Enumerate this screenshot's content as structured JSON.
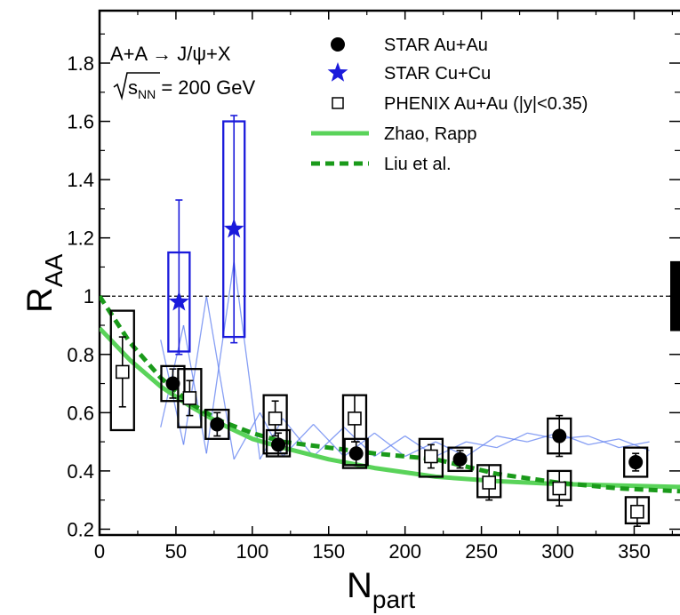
{
  "chart_data": {
    "type": "scatter",
    "xlabel": "N",
    "xlabel_sub": "part",
    "ylabel": "R",
    "ylabel_sub": "AA",
    "xlim": [
      0,
      380
    ],
    "ylim": [
      0.18,
      1.98
    ],
    "xticks": [
      0,
      50,
      100,
      150,
      200,
      250,
      300,
      350
    ],
    "xtick_labels": [
      "0",
      "50",
      "100",
      "150",
      "200",
      "250",
      "300",
      "350"
    ],
    "yticks": [
      0.2,
      0.4,
      0.6,
      0.8,
      1.0,
      1.2,
      1.4,
      1.6,
      1.8
    ],
    "ytick_labels": [
      "0.2",
      "0.4",
      "0.6",
      "0.8",
      "1",
      "1.2",
      "1.4",
      "1.6",
      "1.8"
    ],
    "reference_line_y": 1.0,
    "grid": false,
    "legend_position": "top-right",
    "annotations": {
      "process": "A+A → J/ψ+X",
      "energy_sqrt": "s",
      "energy_sub": "NN",
      "energy_value": " = 200 GeV"
    },
    "series": [
      {
        "name": "STAR Au+Au",
        "marker": "filled-circle",
        "color": "#000000",
        "points": [
          {
            "x": 48,
            "y": 0.7,
            "yerr": 0.05,
            "sys_lo": 0.64,
            "sys_hi": 0.76
          },
          {
            "x": 77,
            "y": 0.56,
            "yerr": 0.04,
            "sys_lo": 0.51,
            "sys_hi": 0.61
          },
          {
            "x": 117,
            "y": 0.49,
            "yerr": 0.04,
            "sys_lo": 0.45,
            "sys_hi": 0.54
          },
          {
            "x": 168,
            "y": 0.46,
            "yerr": 0.04,
            "sys_lo": 0.42,
            "sys_hi": 0.51
          },
          {
            "x": 236,
            "y": 0.44,
            "yerr": 0.03,
            "sys_lo": 0.4,
            "sys_hi": 0.48
          },
          {
            "x": 301,
            "y": 0.52,
            "yerr": 0.07,
            "sys_lo": 0.46,
            "sys_hi": 0.58
          },
          {
            "x": 351,
            "y": 0.43,
            "yerr": 0.03,
            "sys_lo": 0.38,
            "sys_hi": 0.48
          }
        ]
      },
      {
        "name": "STAR Cu+Cu",
        "marker": "star",
        "color": "#1a1adb",
        "points": [
          {
            "x": 52,
            "y": 0.98,
            "yerr_hi": 0.35,
            "yerr_lo": 0.18,
            "sys_lo": 0.81,
            "sys_hi": 1.15
          },
          {
            "x": 88,
            "y": 1.23,
            "yerr_hi": 0.39,
            "yerr_lo": 0.39,
            "sys_lo": 0.86,
            "sys_hi": 1.6
          }
        ]
      },
      {
        "name": "PHENIX Au+Au (|y|<0.35)",
        "marker": "open-square",
        "color": "#000000",
        "points": [
          {
            "x": 15,
            "y": 0.74,
            "yerr": 0.12,
            "sys_lo": 0.54,
            "sys_hi": 0.95
          },
          {
            "x": 59,
            "y": 0.65,
            "yerr": 0.06,
            "sys_lo": 0.55,
            "sys_hi": 0.75
          },
          {
            "x": 115,
            "y": 0.58,
            "yerr": 0.06,
            "sys_lo": 0.46,
            "sys_hi": 0.66
          },
          {
            "x": 167,
            "y": 0.58,
            "yerr": 0.08,
            "sys_lo": 0.41,
            "sys_hi": 0.66
          },
          {
            "x": 217,
            "y": 0.45,
            "yerr": 0.04,
            "sys_lo": 0.38,
            "sys_hi": 0.51
          },
          {
            "x": 255,
            "y": 0.36,
            "yerr": 0.06,
            "sys_lo": 0.31,
            "sys_hi": 0.42
          },
          {
            "x": 301,
            "y": 0.34,
            "yerr": 0.06,
            "sys_lo": 0.3,
            "sys_hi": 0.4
          },
          {
            "x": 352,
            "y": 0.26,
            "yerr": 0.05,
            "sys_lo": 0.22,
            "sys_hi": 0.31
          }
        ]
      },
      {
        "name": "Zhao, Rapp",
        "style": "solid-line",
        "color": "#5ad35a",
        "x": [
          0,
          20,
          40,
          60,
          80,
          100,
          120,
          150,
          180,
          220,
          260,
          300,
          340,
          380
        ],
        "y": [
          0.89,
          0.78,
          0.69,
          0.62,
          0.56,
          0.51,
          0.48,
          0.44,
          0.41,
          0.38,
          0.365,
          0.355,
          0.35,
          0.345
        ]
      },
      {
        "name": "Liu et al.",
        "style": "dashed-line",
        "color": "#1a9a1a",
        "x": [
          0,
          20,
          40,
          60,
          80,
          100,
          120,
          150,
          180,
          220,
          260,
          300,
          340,
          380
        ],
        "y": [
          1.0,
          0.84,
          0.72,
          0.63,
          0.57,
          0.53,
          0.5,
          0.48,
          0.46,
          0.44,
          0.39,
          0.36,
          0.34,
          0.33
        ]
      },
      {
        "marker": "hatched-band",
        "color": "#5f7ff0",
        "x": [
          40,
          55,
          70,
          88,
          105,
          120,
          140,
          160,
          180,
          200,
          220,
          240,
          260,
          280,
          300,
          320,
          340,
          360
        ],
        "y_lo": [
          0.55,
          0.49,
          0.46,
          0.44,
          0.44,
          0.45,
          0.45,
          0.45,
          0.45,
          0.45,
          0.45,
          0.45,
          0.48,
          0.5,
          0.51,
          0.49,
          0.48,
          0.47
        ],
        "y_hi": [
          0.85,
          0.9,
          1.0,
          1.12,
          0.6,
          0.58,
          0.56,
          0.55,
          0.53,
          0.52,
          0.5,
          0.5,
          0.52,
          0.53,
          0.53,
          0.52,
          0.51,
          0.5
        ]
      }
    ],
    "global_uncertainty_box": {
      "y_lo": 0.88,
      "y_hi": 1.12
    }
  }
}
